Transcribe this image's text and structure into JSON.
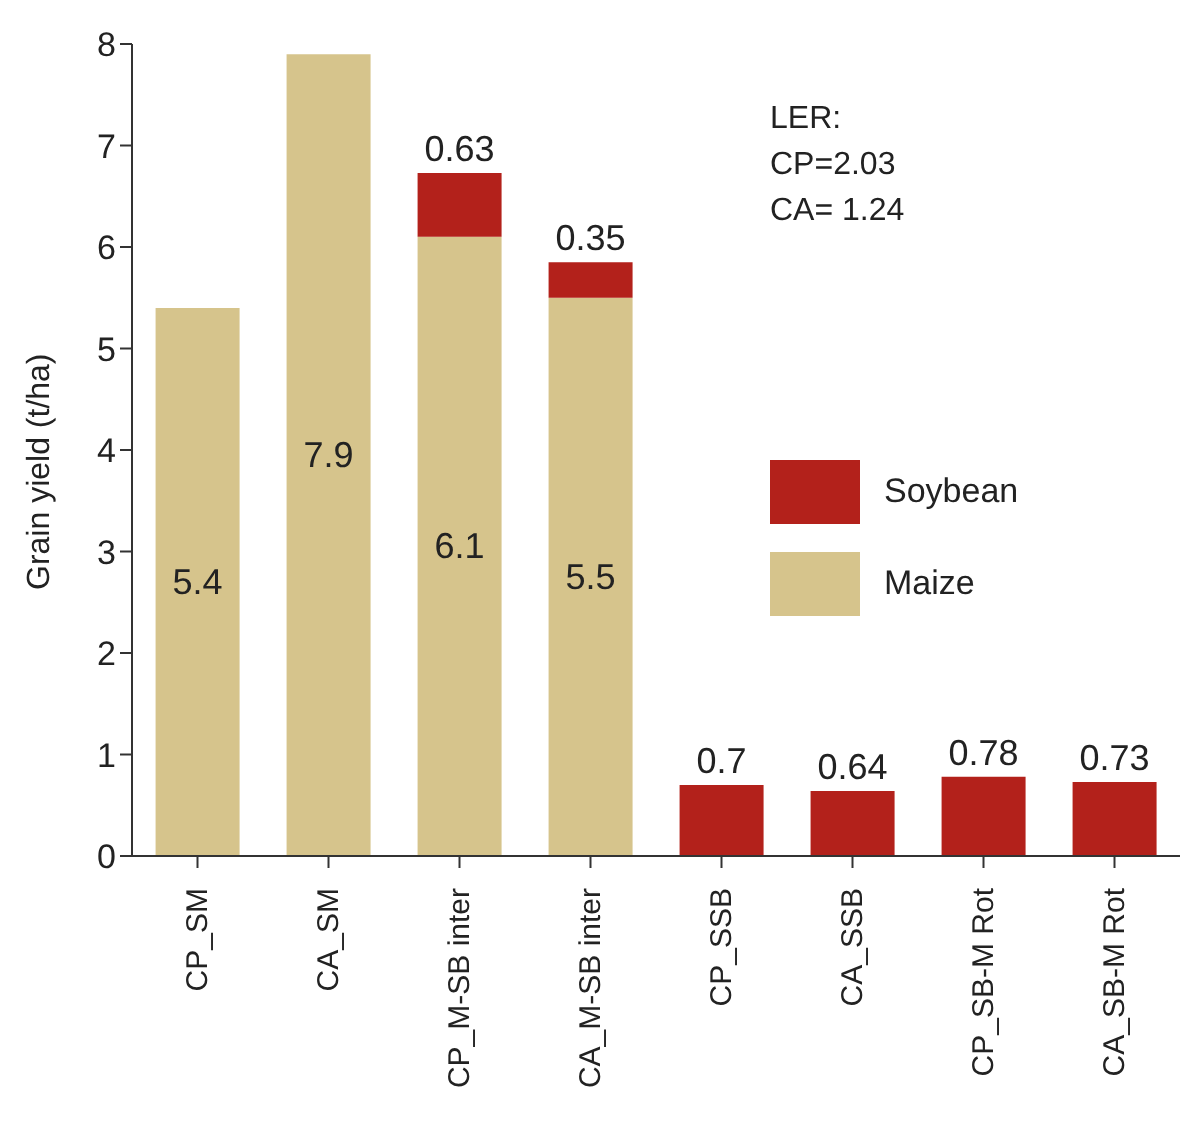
{
  "chart_data": {
    "type": "bar",
    "ylabel": "Grain yield (t/ha)",
    "categories": [
      "CP_SM",
      "CA_SM",
      "CP_M-SB inter",
      "CA_M-SB inter",
      "CP_SSB",
      "CA_SSB",
      "CP_SB-M Rot",
      "CA_SB-M Rot"
    ],
    "series": [
      {
        "name": "Maize",
        "color": "#d6c48c",
        "values": [
          5.4,
          7.9,
          6.1,
          5.5,
          null,
          null,
          null,
          null
        ]
      },
      {
        "name": "Soybean",
        "color": "#b3211b",
        "values": [
          null,
          null,
          0.63,
          0.35,
          0.7,
          0.64,
          0.78,
          0.73
        ]
      }
    ],
    "stacked": true,
    "ylim": [
      0,
      8
    ],
    "yticks": [
      0,
      1,
      2,
      3,
      4,
      5,
      6,
      7,
      8
    ],
    "grid": false,
    "legend": "right",
    "data_labels": true,
    "annotations": [
      "LER:",
      "CP=2.03",
      "CA= 1.24"
    ]
  }
}
